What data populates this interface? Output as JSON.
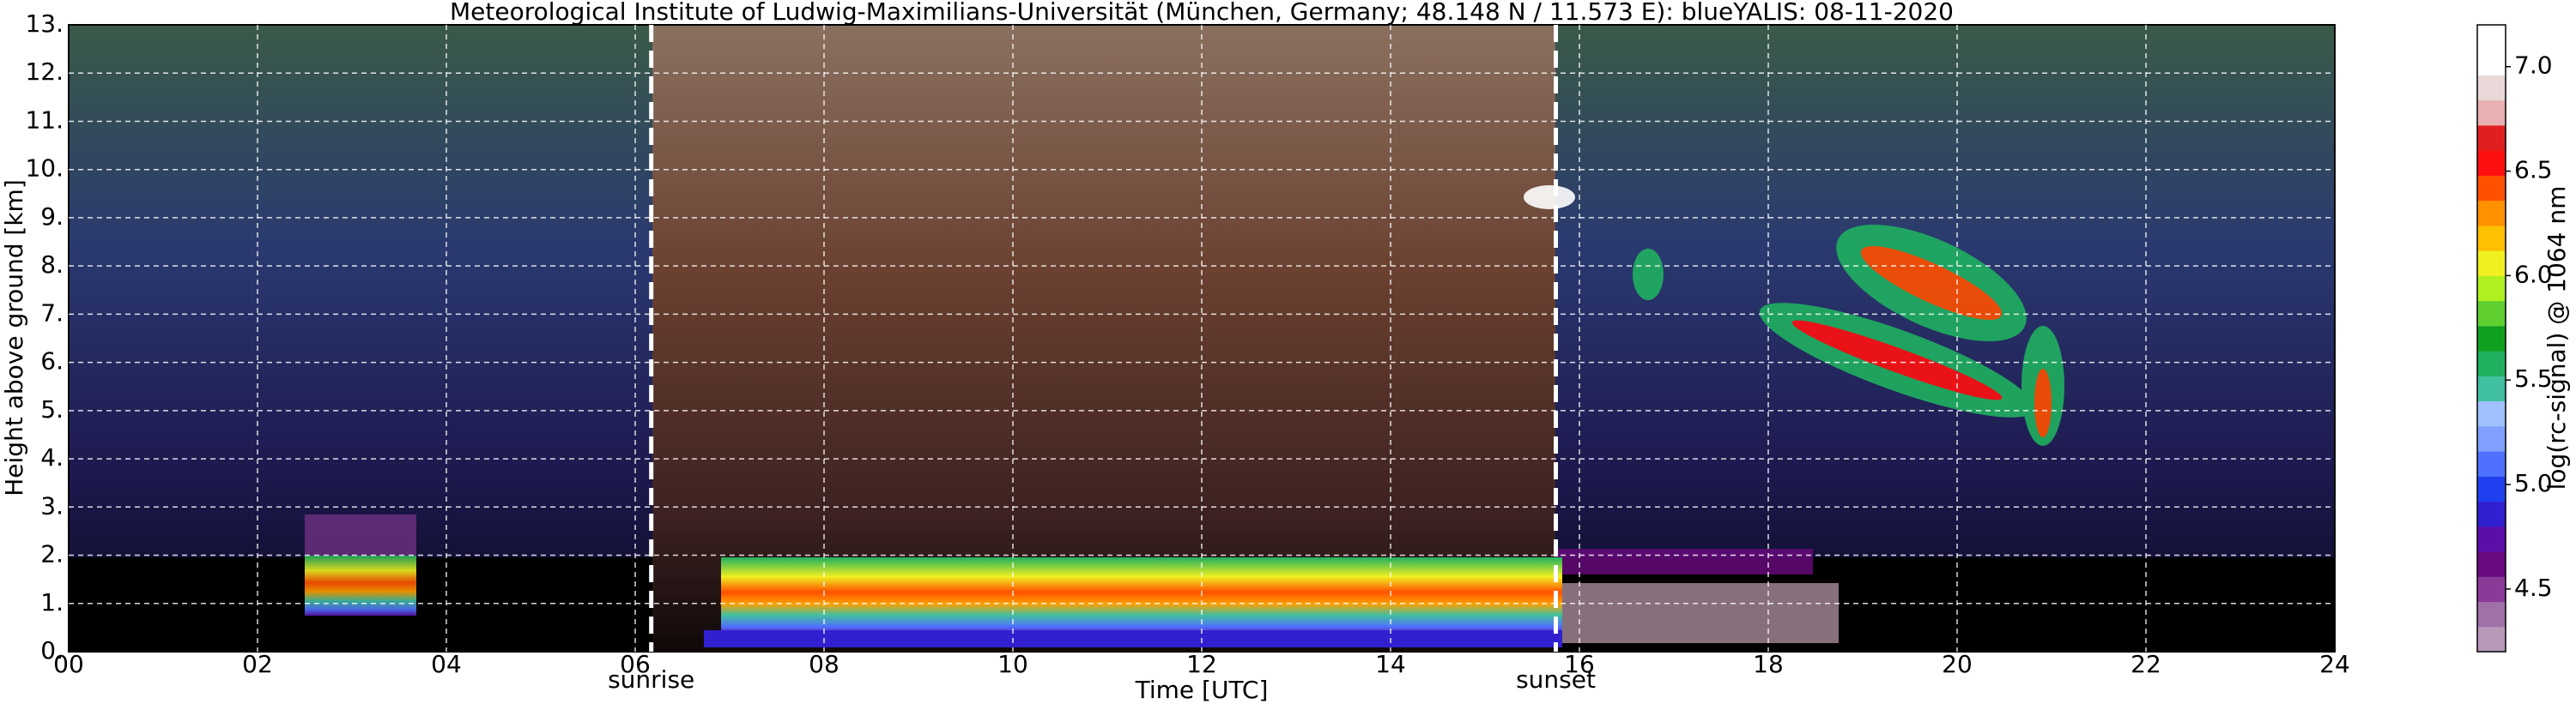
{
  "chart_data": {
    "type": "heatmap",
    "title": "Meteorological Institute of Ludwig-Maximilians-Universität (München, Germany; 48.148 N / 11.573 E):    blueYALIS: 08-11-2020",
    "xlabel": "Time [UTC]",
    "ylabel": "Height above ground [km]",
    "colorbar_label": "log(rc-signal) @ 1064 nm",
    "xlim": [
      0,
      24
    ],
    "ylim": [
      0,
      13
    ],
    "xticks": [
      {
        "value": 0,
        "label": "00"
      },
      {
        "value": 2,
        "label": "02"
      },
      {
        "value": 4,
        "label": "04"
      },
      {
        "value": 6,
        "label": "06"
      },
      {
        "value": 8,
        "label": "08"
      },
      10,
      12,
      14,
      16,
      18,
      20,
      22,
      24
    ],
    "yticks": [
      {
        "value": 0,
        "label": "0."
      },
      {
        "value": 1,
        "label": "1."
      },
      {
        "value": 2,
        "label": "2."
      },
      {
        "value": 3,
        "label": "3."
      },
      {
        "value": 4,
        "label": "4."
      },
      {
        "value": 5,
        "label": "5."
      },
      {
        "value": 6,
        "label": "6."
      },
      {
        "value": 7,
        "label": "7."
      },
      {
        "value": 8,
        "label": "8."
      },
      {
        "value": 9,
        "label": "9."
      },
      {
        "value": 10,
        "label": "10."
      },
      {
        "value": 11,
        "label": "11."
      },
      {
        "value": 12,
        "label": "12."
      },
      {
        "value": 13,
        "label": "13."
      }
    ],
    "grid": true,
    "clim": [
      4.2,
      7.2
    ],
    "cticks": [
      4.5,
      {
        "value": 5,
        "label": "5.0"
      },
      5.5,
      {
        "value": 6,
        "label": "6.0"
      },
      6.5,
      {
        "value": 7,
        "label": "7.0"
      }
    ],
    "colormap": [
      "#b89ab8",
      "#a070a8",
      "#8a3a98",
      "#6a0a80",
      "#5a10a8",
      "#3020d0",
      "#2040f0",
      "#5070ff",
      "#80a0ff",
      "#a0c0ff",
      "#40c0a0",
      "#20b060",
      "#10a020",
      "#60d030",
      "#b0f020",
      "#f0f020",
      "#ffc000",
      "#ff9000",
      "#ff5000",
      "#ff1010",
      "#e02020",
      "#e8b0b0",
      "#e8d8d8",
      "#ffffff",
      "#ffffff"
    ],
    "annotations": [
      {
        "text": "sunrise",
        "x": 6.17
      },
      {
        "text": "sunset",
        "x": 15.75
      }
    ]
  }
}
